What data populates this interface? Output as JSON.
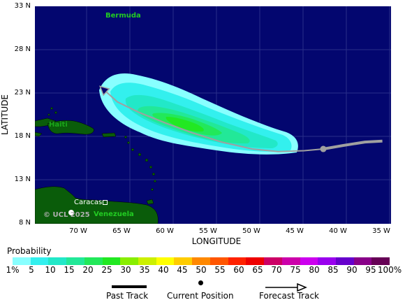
{
  "map": {
    "places": {
      "bermuda": "Bermuda",
      "haiti": "Haiti",
      "caracas": "Caracas",
      "venezuela": "Venezuela"
    },
    "credit": "© UCL 2025",
    "y_axis_title": "LATITUDE",
    "x_axis_title": "LONGITUDE",
    "lat_ticks": [
      "33 N",
      "28 N",
      "23 N",
      "18 N",
      "13 N",
      "8 N"
    ],
    "lon_ticks": [
      "70 W",
      "65 W",
      "60 W",
      "55 W",
      "50 W",
      "45 W",
      "40 W",
      "35 W"
    ],
    "colors": {
      "ocean": "#03066f",
      "land": "#0a5c0a",
      "track": "#a0a0a0",
      "current_position": "#a0a0a0"
    },
    "past_track": [
      [
        -35,
        17.5
      ],
      [
        -37,
        17.4
      ],
      [
        -39.5,
        17.0
      ],
      [
        -41.8,
        16.6
      ]
    ],
    "current_position": [
      -41.8,
      16.6
    ],
    "forecast_track": [
      [
        -41.8,
        16.6
      ],
      [
        -44,
        16.4
      ],
      [
        -47,
        16.3
      ],
      [
        -50,
        16.6
      ],
      [
        -53.5,
        17.4
      ],
      [
        -57,
        18.5
      ],
      [
        -60,
        19.6
      ],
      [
        -63,
        20.8
      ],
      [
        -65.5,
        22.0
      ],
      [
        -67.5,
        23.8
      ]
    ]
  },
  "legend": {
    "title": "Probability",
    "labels": [
      "1%",
      "5",
      "10",
      "15",
      "20",
      "25",
      "30",
      "35",
      "40",
      "45",
      "50",
      "55",
      "60",
      "65",
      "70",
      "75",
      "80",
      "85",
      "90",
      "95",
      "100%"
    ],
    "colors": [
      "#88ffff",
      "#33f0ee",
      "#22e8c8",
      "#22e898",
      "#22e85a",
      "#22e822",
      "#88ee00",
      "#ccf000",
      "#ffff00",
      "#ffcc00",
      "#ff8800",
      "#ff5500",
      "#ff2200",
      "#ee0000",
      "#cc0066",
      "#cc00aa",
      "#cc00ee",
      "#9900ee",
      "#6600cc",
      "#880088",
      "#660055"
    ],
    "key": {
      "past_track": "Past Track",
      "current_position": "Current Position",
      "forecast_track": "Forecast Track"
    }
  }
}
